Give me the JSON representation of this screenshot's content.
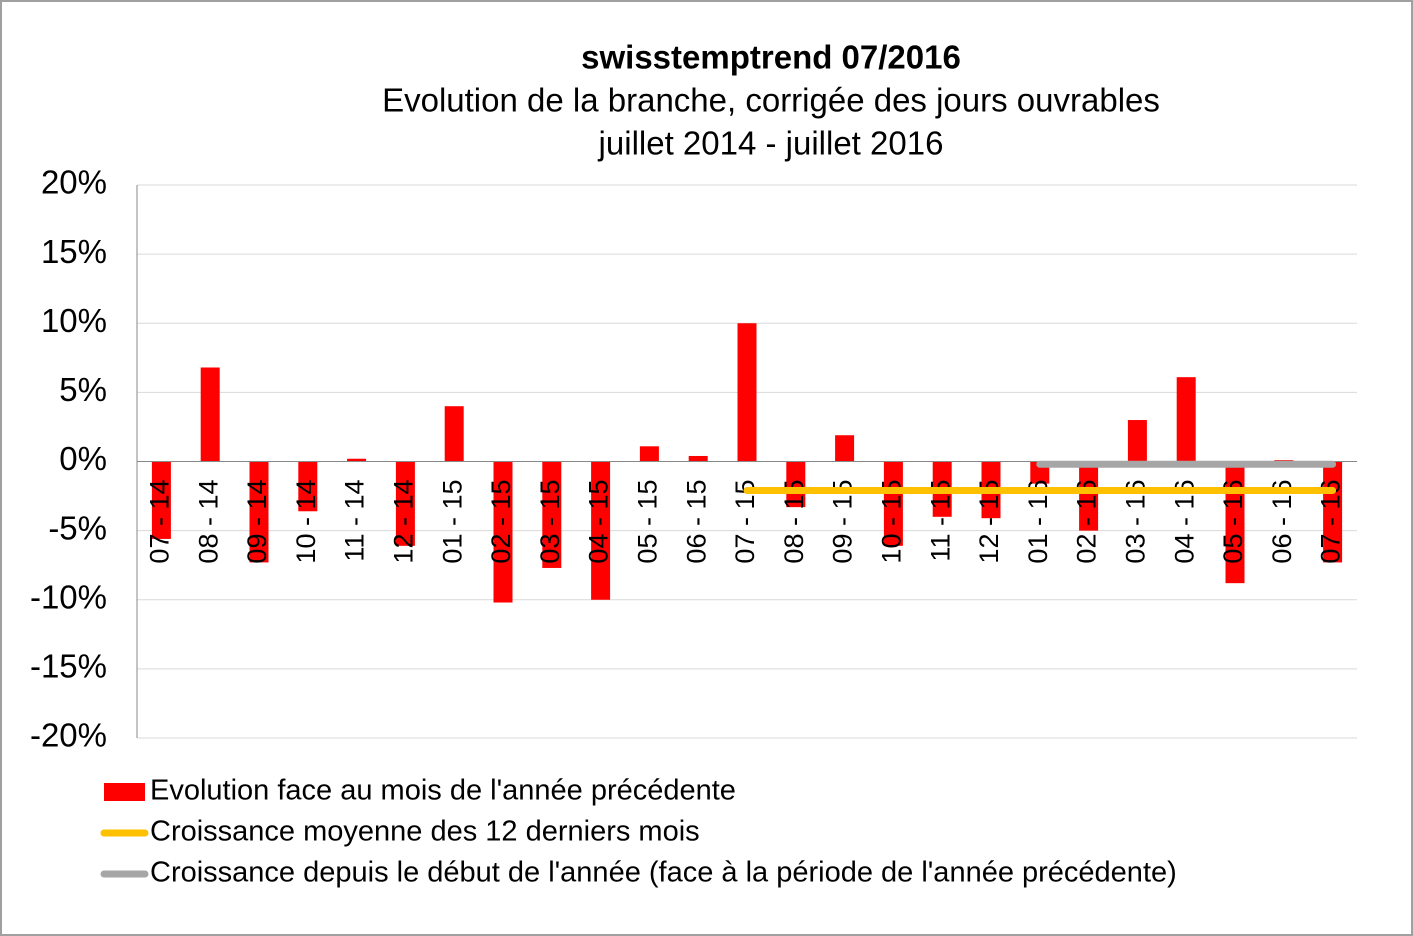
{
  "chart_data": {
    "type": "bar",
    "title": "swisstemptrend 07/2016",
    "subtitle": [
      "Evolution de la branche, corrigée des jours ouvrables",
      "juillet 2014 - juillet 2016"
    ],
    "categories": [
      "07 - 14",
      "08 - 14",
      "09 - 14",
      "10 - 14",
      "11 - 14",
      "12 - 14",
      "01 - 15",
      "02 - 15",
      "03 - 15",
      "04 - 15",
      "05 - 15",
      "06 - 15",
      "07 - 15",
      "08 - 15",
      "09 - 15",
      "10 - 15",
      "11 - 15",
      "12 - 15",
      "01 - 16",
      "02 - 16",
      "03 - 16",
      "04 - 16",
      "05 - 16",
      "06 - 16",
      "07 - 16"
    ],
    "series": [
      {
        "name": "Evolution face au mois de l'année précédente",
        "type": "bar",
        "color": "#ff0000",
        "values": [
          -5.6,
          6.8,
          -7.3,
          -3.6,
          0.2,
          -6.1,
          4.0,
          -10.2,
          -7.7,
          -10.0,
          1.1,
          0.4,
          10.0,
          -3.3,
          1.9,
          -6.1,
          -4.0,
          -4.1,
          -1.6,
          -5.0,
          3.0,
          6.1,
          -8.8,
          0.1,
          -7.3
        ]
      },
      {
        "name": "Croissance moyenne des 12 derniers mois",
        "type": "line",
        "color": "#ffc000",
        "values": [
          null,
          null,
          null,
          null,
          null,
          null,
          null,
          null,
          null,
          null,
          null,
          null,
          -2.1,
          -2.1,
          -2.1,
          -2.1,
          -2.1,
          -2.1,
          -2.1,
          -2.1,
          -2.1,
          -2.1,
          -2.1,
          -2.1,
          -2.1
        ]
      },
      {
        "name": "Croissance depuis le début de l'année (face à la période de l'année précédente)",
        "type": "line",
        "color": "#a6a6a6",
        "values": [
          null,
          null,
          null,
          null,
          null,
          null,
          null,
          null,
          null,
          null,
          null,
          null,
          null,
          null,
          null,
          null,
          null,
          null,
          -0.2,
          -0.2,
          -0.2,
          -0.2,
          -0.2,
          -0.2,
          -0.2
        ]
      }
    ],
    "ylim": [
      -20,
      20
    ],
    "yticks": [
      {
        "value": -20,
        "label": "-20%"
      },
      {
        "value": -15,
        "label": "-15%"
      },
      {
        "value": -10,
        "label": "-10%"
      },
      {
        "value": -5,
        "label": "-5%"
      },
      {
        "value": 0,
        "label": "0%"
      },
      {
        "value": 5,
        "label": "5%"
      },
      {
        "value": 10,
        "label": "10%"
      },
      {
        "value": 15,
        "label": "15%"
      },
      {
        "value": 20,
        "label": "20%"
      }
    ],
    "grid": true
  }
}
